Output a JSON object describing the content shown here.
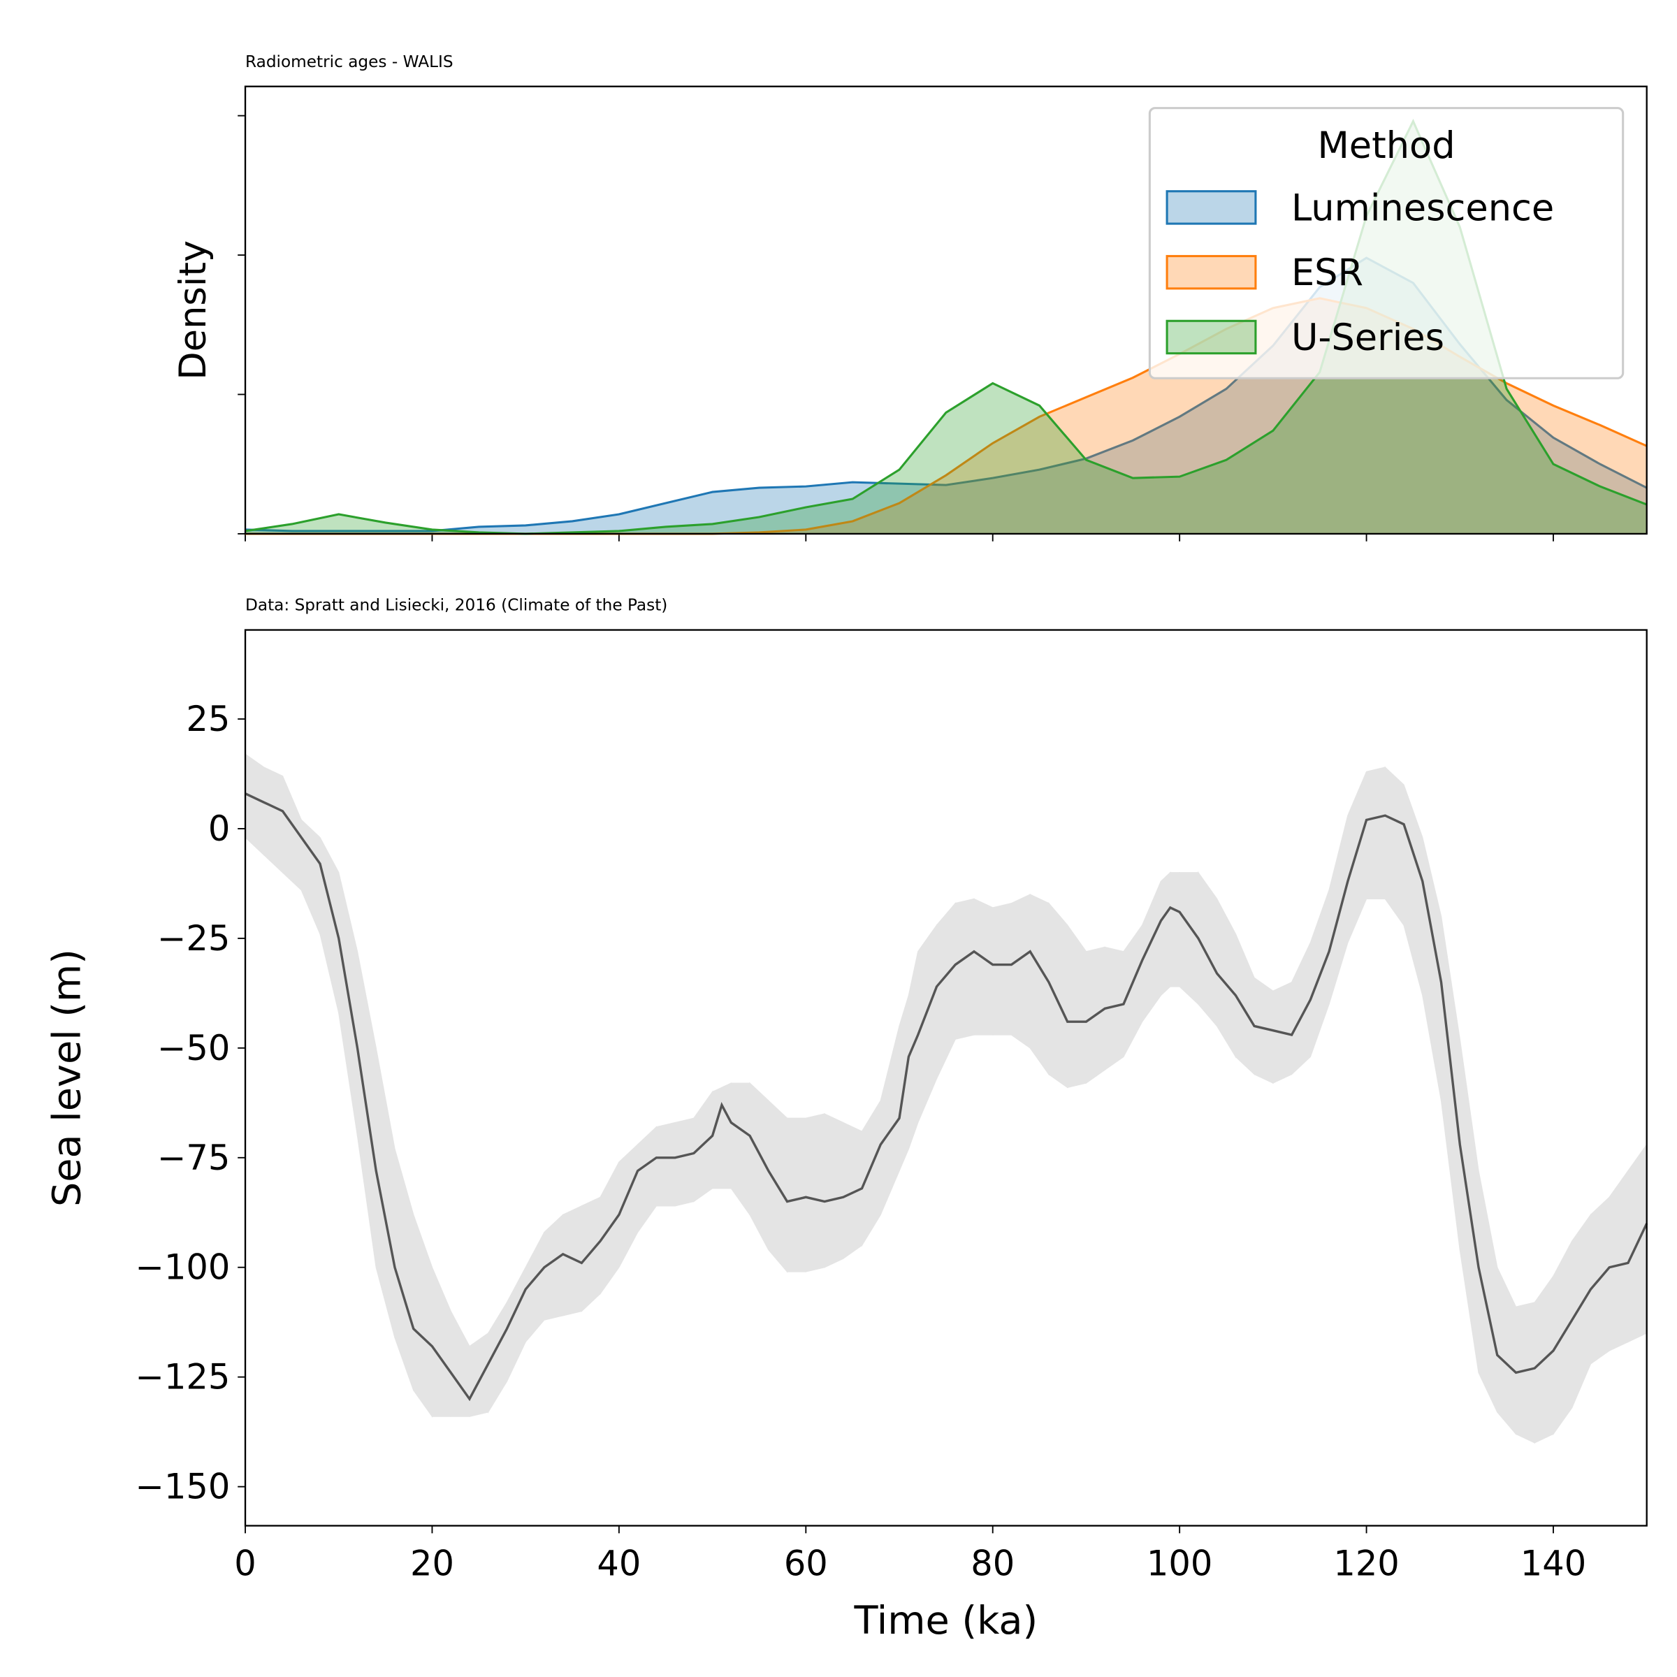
{
  "chart_data": [
    {
      "type": "area",
      "title": "Radiometric ages - WALIS",
      "ylabel": "Density",
      "x": [
        0,
        5,
        10,
        15,
        20,
        25,
        30,
        35,
        40,
        45,
        50,
        55,
        60,
        65,
        70,
        75,
        80,
        85,
        90,
        95,
        100,
        105,
        110,
        115,
        120,
        125,
        130,
        135,
        140,
        145,
        150
      ],
      "series": [
        {
          "name": "Luminescence",
          "color": "#1f77b4",
          "values": [
            0.0003,
            0.0002,
            0.0002,
            0.0002,
            0.0002,
            0.0005,
            0.0006,
            0.0009,
            0.0014,
            0.0022,
            0.003,
            0.0033,
            0.0034,
            0.0037,
            0.0036,
            0.0035,
            0.004,
            0.0046,
            0.0054,
            0.0067,
            0.0084,
            0.0104,
            0.0135,
            0.0177,
            0.0198,
            0.018,
            0.0136,
            0.0096,
            0.0069,
            0.005,
            0.0033
          ]
        },
        {
          "name": "ESR",
          "color": "#ff7f0e",
          "values": [
            0,
            0,
            0,
            0,
            0,
            0,
            0,
            0,
            0,
            0,
            0,
            0.0001,
            0.0003,
            0.0009,
            0.0022,
            0.0042,
            0.0065,
            0.0084,
            0.0098,
            0.0112,
            0.0129,
            0.0147,
            0.0162,
            0.0169,
            0.0162,
            0.0147,
            0.0127,
            0.0108,
            0.0092,
            0.0078,
            0.0063
          ]
        },
        {
          "name": "U-Series",
          "color": "#2ca02c",
          "values": [
            0.0002,
            0.0007,
            0.0014,
            0.0008,
            0.0003,
            0.0001,
            0,
            0.0001,
            0.0002,
            0.0005,
            0.0007,
            0.0012,
            0.0019,
            0.0025,
            0.0046,
            0.0087,
            0.0108,
            0.0092,
            0.0053,
            0.004,
            0.0041,
            0.0053,
            0.0074,
            0.0116,
            0.0228,
            0.0296,
            0.022,
            0.0104,
            0.005,
            0.0034,
            0.0021
          ]
        }
      ],
      "legend_title": "Method",
      "legend": "upper right",
      "xlim": [
        0,
        150
      ],
      "xticks": [
        0,
        20,
        40,
        60,
        80,
        100,
        120,
        140
      ],
      "ylim": [
        0,
        0.0321
      ],
      "yticks": [
        0,
        0.01,
        0.02,
        0.03
      ]
    },
    {
      "type": "line",
      "title": "Data: Spratt and Lisiecki, 2016 (Climate of the Past)",
      "xlabel": "Time (ka)",
      "ylabel": "Sea level (m)",
      "x": [
        0,
        2,
        4,
        6,
        8,
        10,
        12,
        14,
        16,
        18,
        20,
        22,
        24,
        26,
        28,
        30,
        32,
        34,
        36,
        38,
        40,
        42,
        44,
        46,
        48,
        50,
        51,
        52,
        54,
        56,
        58,
        60,
        62,
        64,
        66,
        68,
        70,
        71,
        72,
        74,
        76,
        78,
        80,
        82,
        84,
        86,
        88,
        90,
        92,
        94,
        96,
        98,
        99,
        100,
        102,
        104,
        106,
        108,
        110,
        112,
        114,
        116,
        118,
        120,
        122,
        124,
        126,
        128,
        130,
        132,
        134,
        136,
        138,
        140,
        142,
        144,
        146,
        148,
        150
      ],
      "values": [
        8,
        6,
        4,
        -2,
        -8,
        -25,
        -50,
        -78,
        -100,
        -114,
        -118,
        -124,
        -130,
        -122,
        -114,
        -105,
        -100,
        -97,
        -99,
        -94,
        -88,
        -78,
        -75,
        -75,
        -74,
        -70,
        -63,
        -67,
        -70,
        -78,
        -85,
        -84,
        -85,
        -84,
        -82,
        -72,
        -66,
        -52,
        -47,
        -36,
        -31,
        -28,
        -31,
        -31,
        -28,
        -35,
        -44,
        -44,
        -41,
        -40,
        -30,
        -21,
        -18,
        -19,
        -25,
        -33,
        -38,
        -45,
        -46,
        -47,
        -39,
        -28,
        -12,
        2,
        3,
        1,
        -12,
        -35,
        -72,
        -100,
        -120,
        -124,
        -123,
        -119,
        -112,
        -105,
        -100,
        -99,
        -90
      ],
      "upper": [
        17,
        14,
        12,
        2,
        -2,
        -10,
        -28,
        -50,
        -73,
        -88,
        -100,
        -110,
        -118,
        -115,
        -108,
        -100,
        -92,
        -88,
        -86,
        -84,
        -76,
        -72,
        -68,
        -67,
        -66,
        -60,
        -59,
        -58,
        -58,
        -62,
        -66,
        -66,
        -65,
        -67,
        -69,
        -62,
        -45,
        -38,
        -28,
        -22,
        -17,
        -16,
        -18,
        -17,
        -15,
        -17,
        -22,
        -28,
        -27,
        -28,
        -22,
        -12,
        -10,
        -10,
        -10,
        -16,
        -24,
        -34,
        -37,
        -35,
        -26,
        -14,
        3,
        13,
        14,
        10,
        -2,
        -20,
        -48,
        -78,
        -100,
        -109,
        -108,
        -102,
        -94,
        -88,
        -84,
        -78,
        -72
      ],
      "lower": [
        -2,
        -6,
        -10,
        -14,
        -24,
        -42,
        -70,
        -100,
        -116,
        -128,
        -134,
        -134,
        -134,
        -133,
        -126,
        -117,
        -112,
        -111,
        -110,
        -106,
        -100,
        -92,
        -86,
        -86,
        -85,
        -82,
        -82,
        -82,
        -88,
        -96,
        -101,
        -101,
        -100,
        -98,
        -95,
        -88,
        -78,
        -73,
        -67,
        -57,
        -48,
        -47,
        -47,
        -47,
        -50,
        -56,
        -59,
        -58,
        -55,
        -52,
        -44,
        -38,
        -36,
        -36,
        -40,
        -45,
        -52,
        -56,
        -58,
        -56,
        -52,
        -40,
        -26,
        -16,
        -16,
        -22,
        -38,
        -62,
        -96,
        -124,
        -133,
        -138,
        -140,
        -138,
        -132,
        -122,
        -119,
        -117,
        -115
      ],
      "color": "#555555",
      "band_color": "#e4e4e4",
      "xlim": [
        0,
        150
      ],
      "xticks": [
        0,
        20,
        40,
        60,
        80,
        100,
        120,
        140
      ],
      "ylim": [
        -158.9,
        45.3
      ],
      "yticks": [
        {
          "value": -150,
          "label": "−150"
        },
        {
          "value": -125,
          "label": "−125"
        },
        {
          "value": -100,
          "label": "−100"
        },
        {
          "value": -75,
          "label": "−75"
        },
        {
          "value": -50,
          "label": "−50"
        },
        {
          "value": -25,
          "label": "−25"
        },
        0,
        25
      ]
    }
  ]
}
